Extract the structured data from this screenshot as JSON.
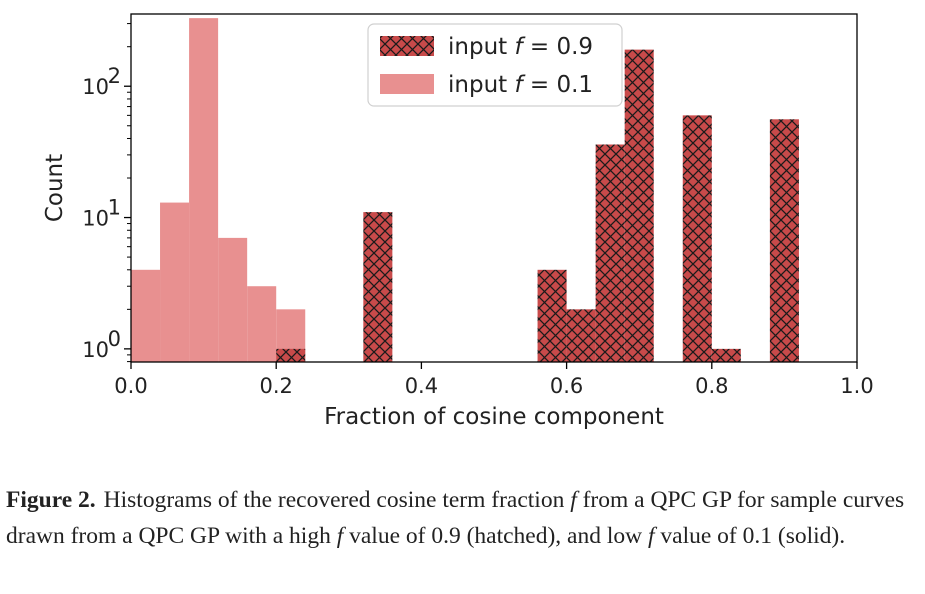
{
  "chart_data": {
    "type": "histogram",
    "xlabel": "Fraction of cosine component",
    "ylabel": "Count",
    "xlim": [
      0.0,
      1.0
    ],
    "ylim_log10": [
      -0.1,
      2.55
    ],
    "yscale": "log",
    "x_ticks": [
      0.0,
      0.2,
      0.4,
      0.6,
      0.8,
      1.0
    ],
    "x_tick_labels": [
      "0.0",
      "0.2",
      "0.4",
      "0.6",
      "0.8",
      "1.0"
    ],
    "y_ticks": [
      1,
      10,
      100
    ],
    "y_tick_labels": [
      {
        "base": "10",
        "exp": "0"
      },
      {
        "base": "10",
        "exp": "1"
      },
      {
        "base": "10",
        "exp": "2"
      }
    ],
    "legend_placement": "top-center",
    "series": [
      {
        "label_prefix": "input ",
        "label_var": "f",
        "label_suffix": " = 0.9",
        "style": "hatched",
        "color": "#c84a4a",
        "bins": [
          {
            "x0": 0.2,
            "x1": 0.24,
            "count": 1
          },
          {
            "x0": 0.32,
            "x1": 0.36,
            "count": 11
          },
          {
            "x0": 0.56,
            "x1": 0.6,
            "count": 4
          },
          {
            "x0": 0.6,
            "x1": 0.64,
            "count": 2
          },
          {
            "x0": 0.64,
            "x1": 0.68,
            "count": 36
          },
          {
            "x0": 0.68,
            "x1": 0.72,
            "count": 190
          },
          {
            "x0": 0.76,
            "x1": 0.8,
            "count": 60
          },
          {
            "x0": 0.8,
            "x1": 0.84,
            "count": 1
          },
          {
            "x0": 0.88,
            "x1": 0.92,
            "count": 56
          }
        ]
      },
      {
        "label_prefix": "input ",
        "label_var": "f",
        "label_suffix": " = 0.1",
        "style": "solid",
        "color": "#e89090",
        "bins": [
          {
            "x0": 0.0,
            "x1": 0.04,
            "count": 4
          },
          {
            "x0": 0.04,
            "x1": 0.08,
            "count": 13
          },
          {
            "x0": 0.08,
            "x1": 0.12,
            "count": 330
          },
          {
            "x0": 0.12,
            "x1": 0.16,
            "count": 7
          },
          {
            "x0": 0.16,
            "x1": 0.2,
            "count": 3
          },
          {
            "x0": 0.2,
            "x1": 0.24,
            "count": 2
          }
        ]
      }
    ]
  },
  "caption": {
    "label": "Figure 2.",
    "text_parts": [
      "Histograms of the recovered cosine term fraction ",
      "f",
      " from a QPC GP for sample curves drawn from a QPC GP with a high ",
      "f",
      " value of 0.9 (hatched), and low ",
      "f",
      " value of 0.1 (solid)."
    ]
  }
}
